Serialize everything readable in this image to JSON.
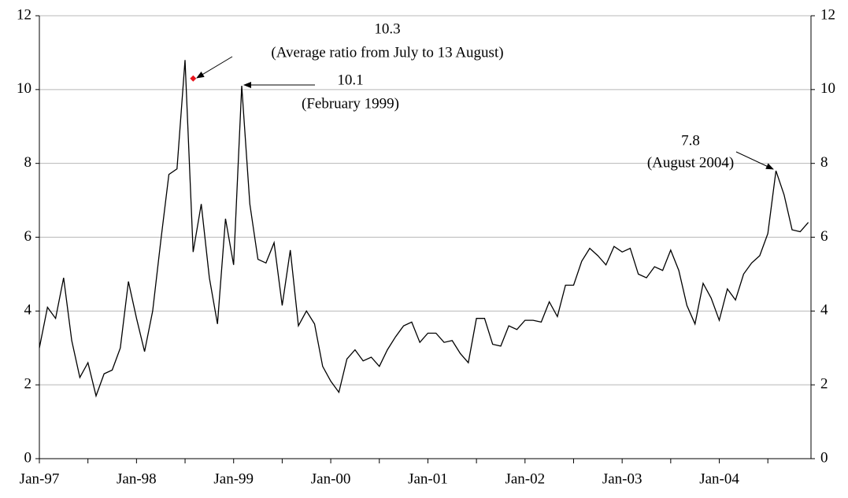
{
  "chart_data": {
    "type": "line",
    "categories": [
      "Jan-97",
      null,
      null,
      null,
      null,
      null,
      null,
      null,
      null,
      null,
      null,
      null,
      "Jan-98",
      null,
      null,
      null,
      null,
      null,
      null,
      null,
      null,
      null,
      null,
      null,
      "Jan-99",
      null,
      null,
      null,
      null,
      null,
      null,
      null,
      null,
      null,
      null,
      null,
      "Jan-00",
      null,
      null,
      null,
      null,
      null,
      null,
      null,
      null,
      null,
      null,
      null,
      "Jan-01",
      null,
      null,
      null,
      null,
      null,
      null,
      null,
      null,
      null,
      null,
      null,
      "Jan-02",
      null,
      null,
      null,
      null,
      null,
      null,
      null,
      null,
      null,
      null,
      null,
      "Jan-03",
      null,
      null,
      null,
      null,
      null,
      null,
      null,
      null,
      null,
      null,
      null,
      "Jan-04",
      null,
      null,
      null,
      null,
      null,
      null,
      null,
      null,
      null,
      null,
      null
    ],
    "series": [
      {
        "color": "#000000",
        "values": [
          3.0,
          4.1,
          3.8,
          4.9,
          3.2,
          2.2,
          2.6,
          1.7,
          2.3,
          2.4,
          3.0,
          4.8,
          3.8,
          2.9,
          4.0,
          5.9,
          7.7,
          7.85,
          10.8,
          5.6,
          6.9,
          4.9,
          3.65,
          6.5,
          5.25,
          10.1,
          6.9,
          5.4,
          5.3,
          5.85,
          4.15,
          5.65,
          3.6,
          4.0,
          3.65,
          2.5,
          2.1,
          1.8,
          2.7,
          2.95,
          2.65,
          2.75,
          2.5,
          2.95,
          3.3,
          3.6,
          3.7,
          3.15,
          3.4,
          3.4,
          3.15,
          3.2,
          2.85,
          2.6,
          3.8,
          3.8,
          3.1,
          3.05,
          3.6,
          3.5,
          3.75,
          3.75,
          3.7,
          4.25,
          3.85,
          4.7,
          4.7,
          5.35,
          5.7,
          5.5,
          5.25,
          5.75,
          5.6,
          5.7,
          5.0,
          4.9,
          5.2,
          5.1,
          5.65,
          5.1,
          4.15,
          3.65,
          4.75,
          4.35,
          3.75,
          4.6,
          4.3,
          5.0,
          5.3,
          5.5,
          6.1,
          7.8,
          7.15,
          6.2,
          6.15,
          6.4
        ]
      },
      {
        "color": "#e8141c",
        "values": [
          null,
          null,
          null,
          null,
          null,
          null,
          null,
          null,
          null,
          null,
          null,
          null,
          null,
          null,
          null,
          null,
          null,
          null,
          null,
          10.3,
          null,
          null,
          null,
          null,
          null,
          null,
          null,
          null,
          null,
          null,
          null,
          null,
          null,
          null,
          null,
          null,
          null,
          null,
          null,
          null,
          null,
          null,
          null,
          null,
          null,
          null,
          null,
          null,
          null,
          null,
          null,
          null,
          null,
          null,
          null,
          null,
          null,
          null,
          null,
          null,
          null,
          null,
          null,
          null,
          null,
          null,
          null,
          null,
          null,
          null,
          null,
          null,
          null,
          null,
          null,
          null,
          null,
          null,
          null,
          null,
          null,
          null,
          null,
          null,
          null,
          null,
          null,
          null,
          null,
          null,
          null,
          null,
          null,
          null,
          null,
          null
        ]
      }
    ],
    "annotations": [
      "(Average ratio from July to 13 August)",
      "(February 1999)",
      "(August 2004)"
    ],
    "ylim": [
      0,
      12
    ],
    "yticks": [
      0,
      2,
      4,
      6,
      8,
      10,
      12
    ],
    "y2lim": [
      0,
      12
    ],
    "y2ticks": [
      0,
      2,
      4,
      6,
      8,
      10,
      12
    ],
    "grid": true
  }
}
